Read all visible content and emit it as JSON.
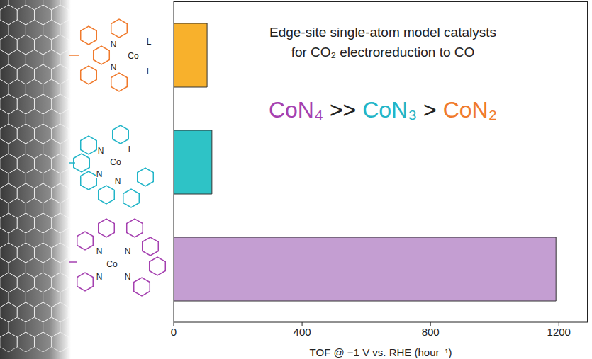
{
  "chart_data": {
    "type": "bar",
    "orientation": "horizontal",
    "title": [
      "Edge-site single-atom model catalysts",
      "for CO₂ electroreduction to CO"
    ],
    "categories": [
      null,
      null,
      null
    ],
    "values": [
      104,
      119,
      1191
    ],
    "colors": [
      "#f8b12c",
      "#2ec3c6",
      "#c49ed2"
    ],
    "xlabel": "TOF @ −1 V vs. RHE (hour⁻¹)",
    "xlim": [
      0,
      1290
    ],
    "xticks": [
      0,
      400,
      800,
      1200
    ],
    "grid": false,
    "annotations": [
      {
        "text": "CoN₄",
        "color": "#a540b0"
      },
      {
        "text": " >> ",
        "color": "#222222"
      },
      {
        "text": "CoN₃",
        "color": "#22b5c8"
      },
      {
        "text": " > ",
        "color": "#222222"
      },
      {
        "text": "CoN₂",
        "color": "#f07a2c"
      }
    ],
    "structures": [
      {
        "color": "#f07a2c",
        "atoms": [
          "N",
          "N",
          "Co",
          "L",
          "L"
        ]
      },
      {
        "color": "#22b5c8",
        "atoms": [
          "N",
          "Co",
          "L",
          "N",
          "N"
        ]
      },
      {
        "color": "#a540b0",
        "atoms": [
          "N",
          "Co",
          "N",
          "N",
          "N"
        ]
      }
    ]
  }
}
